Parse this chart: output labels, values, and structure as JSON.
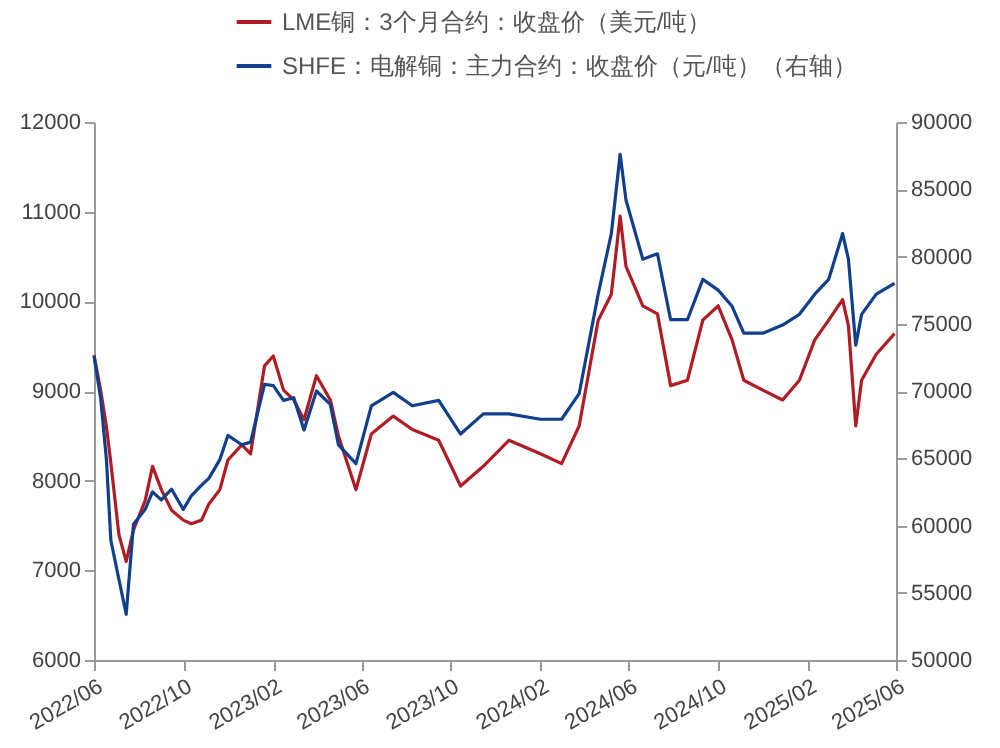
{
  "chart_data": {
    "type": "line",
    "legend": "top",
    "grid": false,
    "x": [
      "2022-06-01",
      "2022-06-10",
      "2022-06-18",
      "2022-06-24",
      "2022-07-05",
      "2022-07-15",
      "2022-07-25",
      "2022-08-10",
      "2022-08-20",
      "2022-09-01",
      "2022-09-15",
      "2022-10-01",
      "2022-10-12",
      "2022-10-26",
      "2022-11-05",
      "2022-11-20",
      "2022-12-01",
      "2022-12-20",
      "2023-01-01",
      "2023-01-20",
      "2023-02-01",
      "2023-02-15",
      "2023-03-01",
      "2023-03-15",
      "2023-04-01",
      "2023-04-20",
      "2023-05-01",
      "2023-05-25",
      "2023-06-15",
      "2023-07-15",
      "2023-08-10",
      "2023-09-15",
      "2023-10-15",
      "2023-11-15",
      "2023-12-20",
      "2024-02-01",
      "2024-03-01",
      "2024-03-25",
      "2024-04-20",
      "2024-05-08",
      "2024-05-20",
      "2024-05-28",
      "2024-06-20",
      "2024-07-10",
      "2024-07-28",
      "2024-08-20",
      "2024-09-10",
      "2024-10-01",
      "2024-10-20",
      "2024-11-05",
      "2024-12-01",
      "2024-12-28",
      "2025-01-20",
      "2025-02-10",
      "2025-03-01",
      "2025-03-20",
      "2025-03-28",
      "2025-04-07",
      "2025-04-15",
      "2025-05-05",
      "2025-05-30"
    ],
    "series": [
      {
        "name": "LME铜：3个月合约：收盘价（美元/吨）",
        "color": "#b01c24",
        "values": [
          9400,
          9010,
          8600,
          8200,
          7400,
          7100,
          7450,
          7780,
          8160,
          7900,
          7670,
          7560,
          7520,
          7560,
          7740,
          7900,
          8230,
          8400,
          8300,
          9280,
          9390,
          9010,
          8900,
          8680,
          9170,
          8900,
          8500,
          7900,
          8520,
          8720,
          8570,
          8450,
          7940,
          8160,
          8450,
          8300,
          8190,
          8610,
          9790,
          10080,
          10950,
          10390,
          9950,
          9860,
          9060,
          9120,
          9790,
          9950,
          9570,
          9120,
          9010,
          8900,
          9120,
          9570,
          9790,
          10020,
          9730,
          8610,
          9120,
          9410,
          9640
        ]
      },
      {
        "name": "SHFE：电解铜：主力合约：收盘价（元/吨）（右轴）",
        "color": "#113f8c",
        "axis": "y2",
        "values": [
          72600,
          69500,
          64900,
          58900,
          56000,
          53400,
          60100,
          61200,
          62500,
          61900,
          62700,
          61200,
          62200,
          63000,
          63500,
          64900,
          66700,
          66000,
          66200,
          70500,
          70400,
          69300,
          69500,
          67100,
          70000,
          69000,
          66000,
          64600,
          68900,
          69900,
          68900,
          69300,
          66800,
          68300,
          68300,
          67900,
          67900,
          69800,
          77200,
          81700,
          87600,
          84200,
          79800,
          80200,
          75300,
          75300,
          78300,
          77500,
          76300,
          74300,
          74300,
          74900,
          75700,
          77200,
          78300,
          81700,
          79800,
          73400,
          75700,
          77200,
          78000
        ]
      }
    ],
    "xlim": [
      "2022-06",
      "2025-06"
    ],
    "xticks": [
      {
        "value": "2022-06",
        "label": "2022/06"
      },
      {
        "value": "2022-10",
        "label": "2022/10"
      },
      {
        "value": "2023-02",
        "label": "2023/02"
      },
      {
        "value": "2023-06",
        "label": "2023/06"
      },
      {
        "value": "2023-10",
        "label": "2023/10"
      },
      {
        "value": "2024-02",
        "label": "2024/02"
      },
      {
        "value": "2024-06",
        "label": "2024/06"
      },
      {
        "value": "2024-10",
        "label": "2024/10"
      },
      {
        "value": "2025-02",
        "label": "2025/02"
      },
      {
        "value": "2025-06",
        "label": "2025/06"
      }
    ],
    "ylim": [
      6000,
      12000
    ],
    "yticks": [
      6000,
      7000,
      8000,
      9000,
      10000,
      11000,
      12000
    ],
    "y2lim": [
      50000,
      90000
    ],
    "y2ticks": [
      50000,
      55000,
      60000,
      65000,
      70000,
      75000,
      80000,
      85000,
      90000
    ]
  }
}
